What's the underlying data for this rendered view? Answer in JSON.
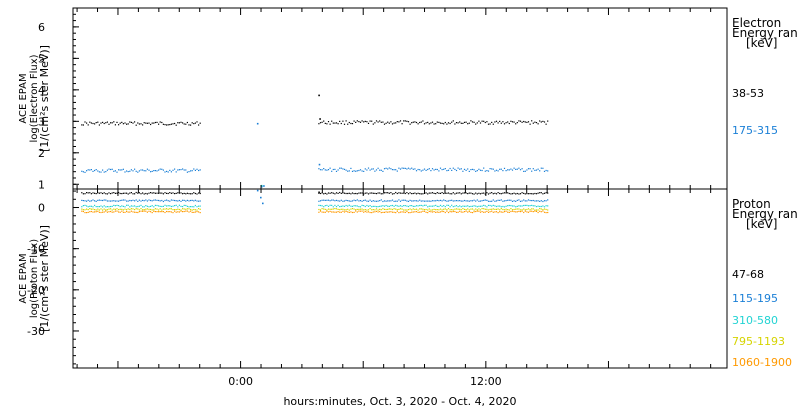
{
  "xaxis": {
    "label": "hours:minutes, Oct.  3, 2020 - Oct.  4, 2020",
    "ticks": [
      {
        "hour": 0,
        "label": "0:00"
      },
      {
        "hour": 12,
        "label": "12:00"
      }
    ]
  },
  "chart_data": [
    {
      "type": "scatter",
      "ylabel_lines": [
        "ACE EPAM",
        "log(Electron Flux)",
        "[1/(cm²s ster MeV)]"
      ],
      "ylim": [
        0.85,
        6.6
      ],
      "yticks": [
        1,
        2,
        3,
        4,
        5,
        6
      ],
      "xlim_hours": [
        -8.2,
        23.8
      ],
      "legend": {
        "title_lines": [
          "Electron",
          "Energy ran",
          "[keV]"
        ],
        "placement": "right"
      },
      "series": [
        {
          "name": "38-53",
          "color": "#000000",
          "segments": [
            {
              "x": [
                -7.8,
                -2.0
              ],
              "y": 2.95
            },
            {
              "x": [
                3.8,
                15.0
              ],
              "y": 2.98
            }
          ],
          "isolated": [
            {
              "x": 3.8,
              "y": 3.85
            },
            {
              "x": 3.85,
              "y": 3.1
            }
          ]
        },
        {
          "name": "175-315",
          "color": "#1a7fd6",
          "segments": [
            {
              "x": [
                -7.8,
                -2.0
              ],
              "y": 1.45
            },
            {
              "x": [
                3.8,
                15.0
              ],
              "y": 1.48
            }
          ],
          "isolated": [
            {
              "x": 0.8,
              "y": 2.95
            },
            {
              "x": 1.0,
              "y": 0.95
            },
            {
              "x": 1.1,
              "y": 0.97
            },
            {
              "x": 3.82,
              "y": 1.65
            }
          ]
        }
      ]
    },
    {
      "type": "scatter",
      "ylabel_lines": [
        "ACE EPAM",
        "log(Proton Flux)",
        "[1/(cm²s ster MeV)]"
      ],
      "ylim": [
        -39,
        4.5
      ],
      "yticks": [
        0,
        -10,
        -20,
        -30
      ],
      "xlim_hours": [
        -8.2,
        23.8
      ],
      "legend": {
        "title_lines": [
          "Proton",
          "Energy ran",
          "[keV]"
        ],
        "placement": "right"
      },
      "series": [
        {
          "name": "47-68",
          "color": "#000000",
          "segments": [
            {
              "x": [
                -7.8,
                -2.0
              ],
              "y": 3.6
            },
            {
              "x": [
                3.8,
                15.0
              ],
              "y": 3.6
            }
          ],
          "isolated": [
            {
              "x": 3.8,
              "y": 3.9
            }
          ]
        },
        {
          "name": "115-195",
          "color": "#1a7fd6",
          "segments": [
            {
              "x": [
                -7.8,
                -2.0
              ],
              "y": 1.8
            },
            {
              "x": [
                3.8,
                15.0
              ],
              "y": 1.8
            }
          ],
          "isolated": [
            {
              "x": 0.8,
              "y": 4.3
            },
            {
              "x": 0.95,
              "y": 2.6
            },
            {
              "x": 1.05,
              "y": 1.2
            }
          ]
        },
        {
          "name": "310-580",
          "color": "#22d3d3",
          "segments": [
            {
              "x": [
                -7.8,
                -2.0
              ],
              "y": 0.5
            },
            {
              "x": [
                3.8,
                15.0
              ],
              "y": 0.5
            }
          ],
          "isolated": [
            {
              "x": 1.0,
              "y": 5.5
            }
          ]
        },
        {
          "name": "795-1193",
          "color": "#d6d400",
          "segments": [
            {
              "x": [
                -7.8,
                -2.0
              ],
              "y": -0.3
            },
            {
              "x": [
                3.8,
                15.0
              ],
              "y": -0.3
            }
          ],
          "isolated": []
        },
        {
          "name": "1060-1900",
          "color": "#ff9900",
          "segments": [
            {
              "x": [
                -7.8,
                -2.0
              ],
              "y": -0.9
            },
            {
              "x": [
                3.8,
                15.0
              ],
              "y": -0.9
            }
          ],
          "isolated": []
        }
      ]
    }
  ]
}
